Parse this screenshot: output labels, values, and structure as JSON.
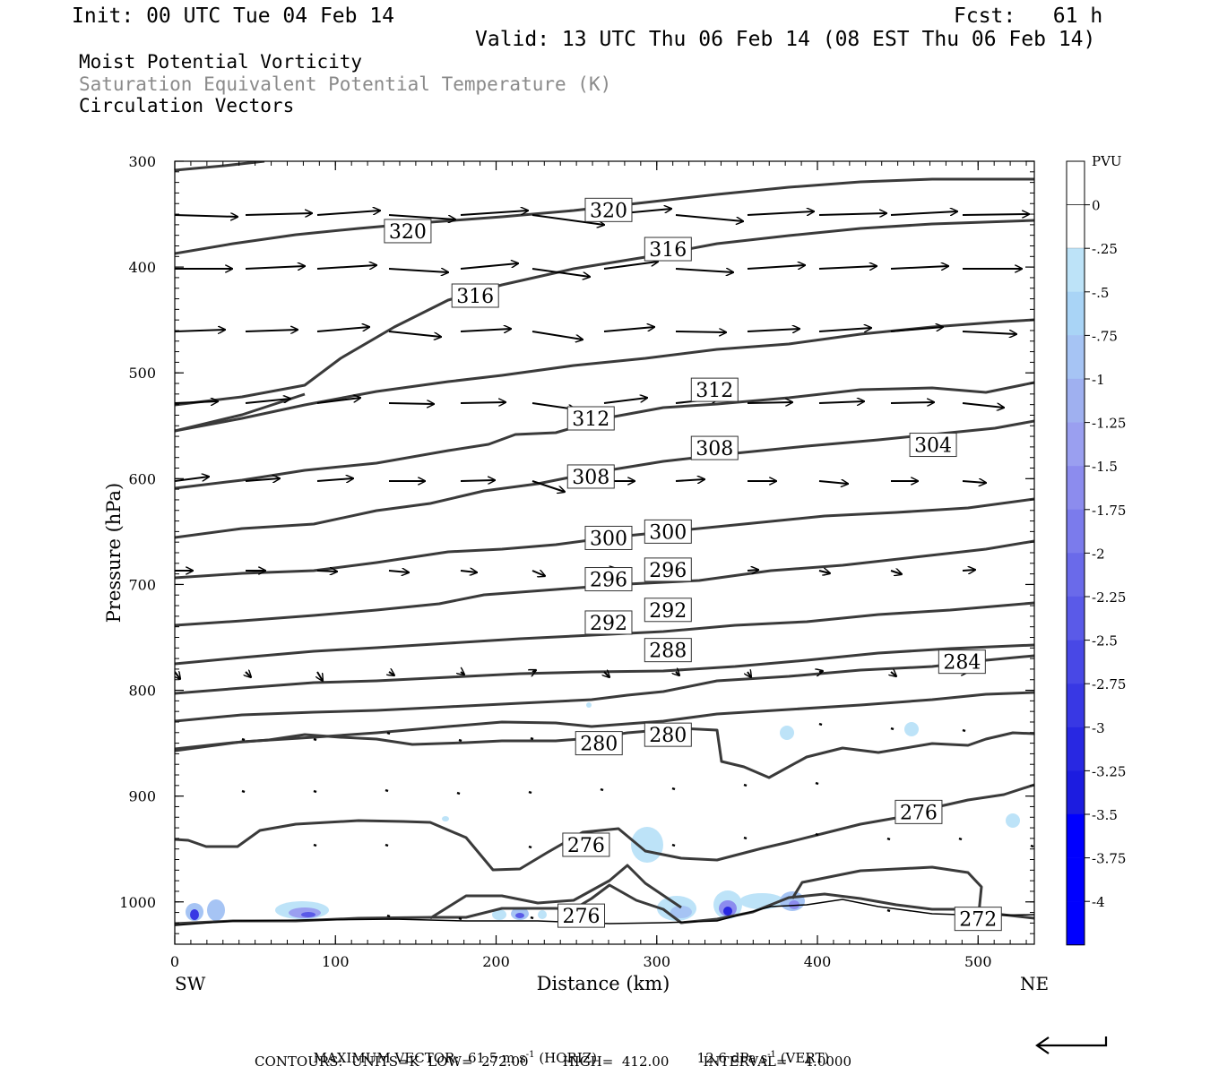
{
  "header": {
    "init": "Init: 00 UTC Tue 04 Feb 14",
    "fcst": "Fcst:   61 h",
    "valid": "Valid: 13 UTC Thu 06 Feb 14 (08 EST Thu 06 Feb 14)"
  },
  "titles": {
    "line1": "Moist Potential Vorticity",
    "line2": "Saturation Equivalent Potential Temperature (K)",
    "line3": "Circulation Vectors"
  },
  "footer": {
    "max_vector_label": "MAXIMUM VECTOR:",
    "horiz_value": "61.5 m s",
    "horiz_exp": "-1",
    "horiz_tag": "(HORIZ)",
    "vert_value": "12.6 dPa s",
    "vert_exp": "-1",
    "vert_tag": "(VERT)",
    "contours": "CONTOURS:  UNITS=K  LOW=  272.00        HIGH=  412.00        INTERVAL=    4.0000"
  },
  "colors": {
    "contour": "#3a3a3a",
    "vector": "#000000",
    "pv_ramp": [
      "#ffffff",
      "#ffffff",
      "#bde3f8",
      "#a9d4f6",
      "#a6c4f4",
      "#9fb0f0",
      "#9a9ff0",
      "#8c8cee",
      "#7b7bec",
      "#6a6aea",
      "#5a5ae8",
      "#4848e6",
      "#3838e4",
      "#2828e2",
      "#1c1ce0",
      "#0000ff",
      "#0000ff",
      "#0000ff"
    ]
  },
  "chart_data": {
    "type": "contour-cross-section",
    "xlabel": "Distance (km)",
    "ylabel": "Pressure (hPa)",
    "xlim": [
      0,
      535
    ],
    "ylim": [
      1040,
      300
    ],
    "x_ticks": [
      0,
      100,
      200,
      300,
      400,
      500
    ],
    "y_ticks": [
      300,
      400,
      500,
      600,
      700,
      800,
      900,
      1000
    ],
    "x_end_labels": {
      "left": "SW",
      "right": "NE"
    },
    "colorbar": {
      "unit": "PVU",
      "tick_labels": [
        "0",
        "-.25",
        "-.5",
        "-.75",
        "-1",
        "-1.25",
        "-1.5",
        "-1.75",
        "-2",
        "-2.25",
        "-2.5",
        "-2.75",
        "-3",
        "-3.25",
        "-3.5",
        "-3.75",
        "-4"
      ]
    },
    "contour_labels": [
      {
        "value": "320",
        "x": 145,
        "p": 366
      },
      {
        "value": "320",
        "x": 270,
        "p": 346
      },
      {
        "value": "316",
        "x": 187,
        "p": 427
      },
      {
        "value": "316",
        "x": 307,
        "p": 383
      },
      {
        "value": "312",
        "x": 259,
        "p": 543
      },
      {
        "value": "312",
        "x": 336,
        "p": 516
      },
      {
        "value": "308",
        "x": 259,
        "p": 598
      },
      {
        "value": "308",
        "x": 336,
        "p": 571
      },
      {
        "value": "304",
        "x": 472,
        "p": 568
      },
      {
        "value": "300",
        "x": 270,
        "p": 656
      },
      {
        "value": "300",
        "x": 307,
        "p": 650
      },
      {
        "value": "296",
        "x": 270,
        "p": 695
      },
      {
        "value": "296",
        "x": 307,
        "p": 686
      },
      {
        "value": "292",
        "x": 270,
        "p": 736
      },
      {
        "value": "292",
        "x": 307,
        "p": 724
      },
      {
        "value": "288",
        "x": 307,
        "p": 762
      },
      {
        "value": "284",
        "x": 490,
        "p": 773
      },
      {
        "value": "280",
        "x": 264,
        "p": 850
      },
      {
        "value": "280",
        "x": 307,
        "p": 842
      },
      {
        "value": "276",
        "x": 256,
        "p": 946
      },
      {
        "value": "276",
        "x": 463,
        "p": 915
      },
      {
        "value": "276",
        "x": 253,
        "p": 1013
      },
      {
        "value": "272",
        "x": 500,
        "p": 1016
      }
    ]
  }
}
